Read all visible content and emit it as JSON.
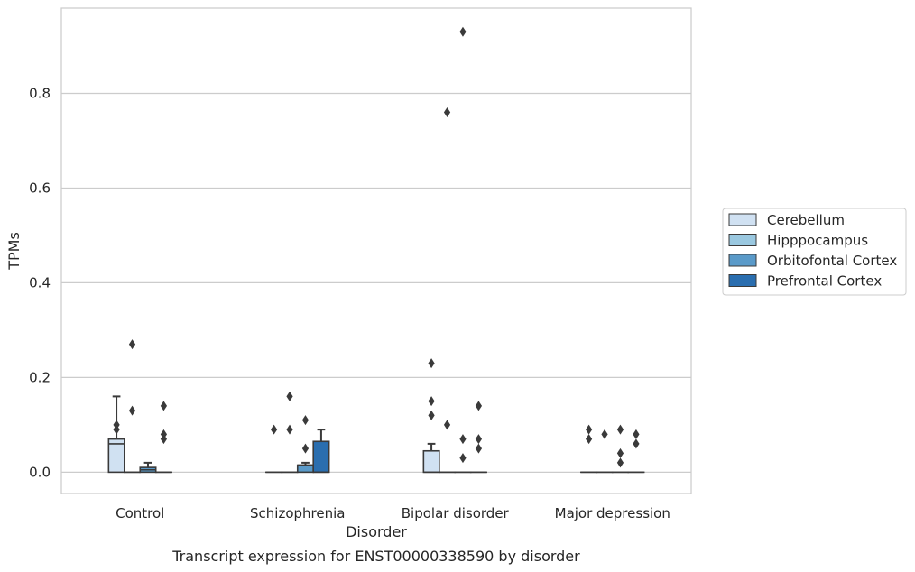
{
  "chart_data": {
    "type": "boxplot",
    "caption": "Transcript expression for ENST00000338590 by disorder",
    "xlabel": "Disorder",
    "ylabel": "TPMs",
    "ylim": [
      -0.045,
      0.98
    ],
    "yticks": [
      0.0,
      0.2,
      0.4,
      0.6,
      0.8
    ],
    "ytick_labels": [
      "0.0",
      "0.2",
      "0.4",
      "0.6",
      "0.8"
    ],
    "grid": "horizontal",
    "legend_position": "right",
    "categories": [
      "Control",
      "Schizophrenia",
      "Bipolar disorder",
      "Major depression"
    ],
    "series": [
      {
        "name": "Cerebellum",
        "color": "#d0e1f2",
        "boxes": [
          {
            "q1": 0.0,
            "median": 0.06,
            "q3": 0.07,
            "whisker_low": 0.0,
            "whisker_high": 0.16,
            "outliers": [
              0.1,
              0.09
            ]
          },
          {
            "q1": 0.0,
            "median": 0.0,
            "q3": 0.0,
            "whisker_low": 0.0,
            "whisker_high": 0.0,
            "outliers": [
              0.09
            ]
          },
          {
            "q1": 0.0,
            "median": 0.0,
            "q3": 0.045,
            "whisker_low": 0.0,
            "whisker_high": 0.06,
            "outliers": [
              0.23,
              0.15,
              0.12
            ]
          },
          {
            "q1": 0.0,
            "median": 0.0,
            "q3": 0.0,
            "whisker_low": 0.0,
            "whisker_high": 0.0,
            "outliers": [
              0.09,
              0.07
            ]
          }
        ]
      },
      {
        "name": "Hipppocampus",
        "color": "#9ac8e0",
        "boxes": [
          {
            "q1": 0.0,
            "median": 0.0,
            "q3": 0.0,
            "whisker_low": 0.0,
            "whisker_high": 0.0,
            "outliers": [
              0.27,
              0.13
            ]
          },
          {
            "q1": 0.0,
            "median": 0.0,
            "q3": 0.0,
            "whisker_low": 0.0,
            "whisker_high": 0.0,
            "outliers": [
              0.16,
              0.09
            ]
          },
          {
            "q1": 0.0,
            "median": 0.0,
            "q3": 0.0,
            "whisker_low": 0.0,
            "whisker_high": 0.0,
            "outliers": [
              0.76,
              0.1
            ]
          },
          {
            "q1": 0.0,
            "median": 0.0,
            "q3": 0.0,
            "whisker_low": 0.0,
            "whisker_high": 0.0,
            "outliers": [
              0.08
            ]
          }
        ]
      },
      {
        "name": "Orbitofontal Cortex",
        "color": "#5a9ac9",
        "boxes": [
          {
            "q1": 0.0,
            "median": 0.005,
            "q3": 0.01,
            "whisker_low": 0.0,
            "whisker_high": 0.02,
            "outliers": []
          },
          {
            "q1": 0.0,
            "median": 0.015,
            "q3": 0.015,
            "whisker_low": 0.0,
            "whisker_high": 0.02,
            "outliers": [
              0.11,
              0.05
            ]
          },
          {
            "q1": 0.0,
            "median": 0.0,
            "q3": 0.0,
            "whisker_low": 0.0,
            "whisker_high": 0.0,
            "outliers": [
              0.93,
              0.07,
              0.03
            ]
          },
          {
            "q1": 0.0,
            "median": 0.0,
            "q3": 0.0,
            "whisker_low": 0.0,
            "whisker_high": 0.0,
            "outliers": [
              0.09,
              0.04,
              0.02
            ]
          }
        ]
      },
      {
        "name": "Prefrontal Cortex",
        "color": "#2a6eaf",
        "boxes": [
          {
            "q1": 0.0,
            "median": 0.0,
            "q3": 0.0,
            "whisker_low": 0.0,
            "whisker_high": 0.0,
            "outliers": [
              0.14,
              0.08,
              0.07
            ]
          },
          {
            "q1": 0.0,
            "median": 0.0,
            "q3": 0.065,
            "whisker_low": 0.0,
            "whisker_high": 0.09,
            "outliers": []
          },
          {
            "q1": 0.0,
            "median": 0.0,
            "q3": 0.0,
            "whisker_low": 0.0,
            "whisker_high": 0.0,
            "outliers": [
              0.14,
              0.07,
              0.05
            ]
          },
          {
            "q1": 0.0,
            "median": 0.0,
            "q3": 0.0,
            "whisker_low": 0.0,
            "whisker_high": 0.0,
            "outliers": [
              0.08,
              0.06
            ]
          }
        ]
      }
    ]
  }
}
